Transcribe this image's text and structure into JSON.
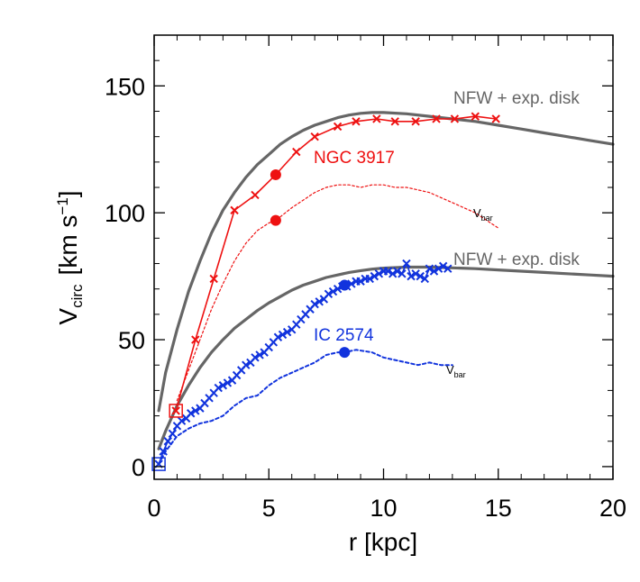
{
  "chart_data": {
    "type": "line",
    "xlabel": "r [kpc]",
    "ylabel": {
      "main": "V",
      "sub": "circ",
      "units": "[km s",
      "sup": "−1",
      "close": "]"
    },
    "xlim": [
      0,
      20
    ],
    "ylim": [
      -5,
      170
    ],
    "x_ticks": [
      0,
      5,
      10,
      15,
      20
    ],
    "y_ticks": [
      0,
      50,
      100,
      150
    ],
    "grid": false,
    "annotations": {
      "ngc_model": "NFW + exp. disk",
      "ngc_name": "NGC 3917",
      "ngc_vbar_main": "V",
      "ngc_vbar_sub": "bar",
      "ic_model": "NFW + exp. disk",
      "ic_name": "IC 2574",
      "ic_vbar_main": "V",
      "ic_vbar_sub": "bar"
    },
    "colors": {
      "ngc": "#ee1111",
      "ic": "#1133dd",
      "model": "#666666"
    },
    "series": [
      {
        "id": "ngc-model",
        "style": "model",
        "x": [
          0.2,
          0.5,
          1,
          1.5,
          2,
          2.5,
          3,
          3.5,
          4,
          4.5,
          5,
          5.5,
          6,
          6.5,
          7,
          7.5,
          8,
          8.5,
          9,
          9.5,
          10,
          11,
          12,
          13,
          14,
          15,
          16,
          17,
          18,
          19,
          20
        ],
        "y": [
          22,
          37,
          54,
          69,
          81,
          92,
          101,
          108,
          114,
          119,
          123,
          127,
          130,
          132.5,
          134.5,
          136,
          137.5,
          138.5,
          139.2,
          139.5,
          139.5,
          139,
          138,
          137,
          136,
          134.5,
          133,
          131.5,
          130,
          128.5,
          127
        ]
      },
      {
        "id": "ic-model",
        "style": "model",
        "x": [
          0.2,
          0.5,
          1,
          1.5,
          2,
          2.5,
          3,
          3.5,
          4,
          4.5,
          5,
          5.5,
          6,
          6.5,
          7,
          7.5,
          8,
          8.5,
          9,
          9.5,
          10,
          11,
          12,
          13,
          14,
          15,
          16,
          17,
          18,
          19,
          20
        ],
        "y": [
          7,
          14,
          24,
          32,
          39,
          45,
          50,
          54.5,
          58,
          61.5,
          64.5,
          67,
          69.5,
          71.5,
          73,
          74.5,
          75.5,
          76.5,
          77.2,
          77.8,
          78.2,
          78.6,
          78.6,
          78.3,
          78,
          77.5,
          77,
          76.5,
          76,
          75.5,
          75
        ]
      },
      {
        "id": "ngc-obs",
        "style": "obs-ngc",
        "x": [
          0.95,
          1.8,
          2.6,
          3.5,
          4.4,
          5.3,
          6.2,
          7.0,
          8.0,
          8.8,
          9.7,
          10.5,
          11.4,
          12.3,
          13.1,
          14.0,
          14.9
        ],
        "y": [
          22,
          50,
          74,
          101,
          107,
          115,
          124,
          130,
          134,
          136,
          137,
          136,
          136,
          137,
          137,
          138,
          137
        ]
      },
      {
        "id": "ngc-vbar",
        "style": "vbar-ngc",
        "x": [
          1,
          1.5,
          2,
          2.5,
          3,
          3.5,
          4,
          4.5,
          5,
          5.3,
          6,
          6.5,
          7,
          7.5,
          8,
          8.5,
          9,
          9.5,
          10,
          10.5,
          11,
          11.5,
          12,
          12.5,
          13,
          13.5,
          14,
          14.5,
          15
        ],
        "y": [
          26,
          38,
          50,
          62,
          72,
          81,
          88,
          93,
          96,
          97,
          102,
          105,
          108,
          110,
          111,
          111,
          110,
          111,
          111,
          110,
          110,
          109,
          108,
          106,
          104,
          102,
          100,
          97,
          94
        ]
      },
      {
        "id": "ic-obs",
        "style": "obs-ic",
        "x": [
          0.2,
          0.4,
          0.6,
          0.8,
          1.0,
          1.2,
          1.4,
          1.6,
          1.8,
          2.0,
          2.2,
          2.4,
          2.6,
          2.8,
          3.0,
          3.2,
          3.4,
          3.6,
          3.8,
          4.0,
          4.2,
          4.4,
          4.6,
          4.8,
          5.0,
          5.2,
          5.4,
          5.6,
          5.8,
          6.0,
          6.2,
          6.4,
          6.6,
          6.8,
          7.0,
          7.2,
          7.4,
          7.6,
          7.8,
          8.0,
          8.2,
          8.4,
          8.6,
          8.8,
          9.0,
          9.2,
          9.4,
          9.6,
          9.8,
          10.0,
          10.2,
          10.4,
          10.6,
          10.8,
          11.0,
          11.2,
          11.4,
          11.6,
          11.8,
          12.0,
          12.2,
          12.4,
          12.6,
          12.8
        ],
        "y": [
          1,
          6,
          10,
          13,
          16,
          18,
          19,
          21,
          22,
          23,
          25,
          27,
          29,
          31,
          32,
          33,
          34,
          36,
          38,
          40,
          41,
          43,
          44,
          45,
          47,
          49,
          51,
          52,
          53,
          54,
          56,
          58,
          60,
          62,
          64,
          65,
          66,
          68,
          69,
          70,
          71,
          71,
          72,
          73,
          73,
          74,
          74,
          75,
          76,
          77,
          77,
          76,
          77,
          76,
          80,
          75,
          76,
          75,
          74,
          78,
          77,
          78,
          79,
          78
        ]
      },
      {
        "id": "ic-vbar",
        "style": "vbar-ic",
        "x": [
          0.2,
          0.5,
          1,
          1.5,
          2,
          2.5,
          3,
          3.5,
          4,
          4.5,
          5,
          5.5,
          6,
          6.5,
          7,
          7.5,
          8,
          8.3,
          8.8,
          9.5,
          10,
          10.5,
          11,
          11.5,
          12,
          12.5,
          13
        ],
        "y": [
          1,
          6,
          12,
          15,
          17,
          18,
          20,
          24,
          27,
          28,
          32,
          35,
          37,
          39,
          41,
          44,
          45,
          45,
          46,
          45,
          43,
          42,
          41,
          40,
          41,
          40,
          40
        ]
      }
    ],
    "markers": [
      {
        "id": "ngc-dot-obs",
        "color": "ngc",
        "x": 5.3,
        "y": 115
      },
      {
        "id": "ngc-dot-bar",
        "color": "ngc",
        "x": 5.3,
        "y": 97
      },
      {
        "id": "ic-dot-obs",
        "color": "ic",
        "x": 8.3,
        "y": 71.5
      },
      {
        "id": "ic-dot-bar",
        "color": "ic",
        "x": 8.3,
        "y": 45
      }
    ],
    "boxed_points": [
      {
        "id": "ngc-box",
        "color": "ngc",
        "x": 0.95,
        "y": 22
      },
      {
        "id": "ic-box",
        "color": "ic",
        "x": 0.2,
        "y": 1
      }
    ]
  }
}
